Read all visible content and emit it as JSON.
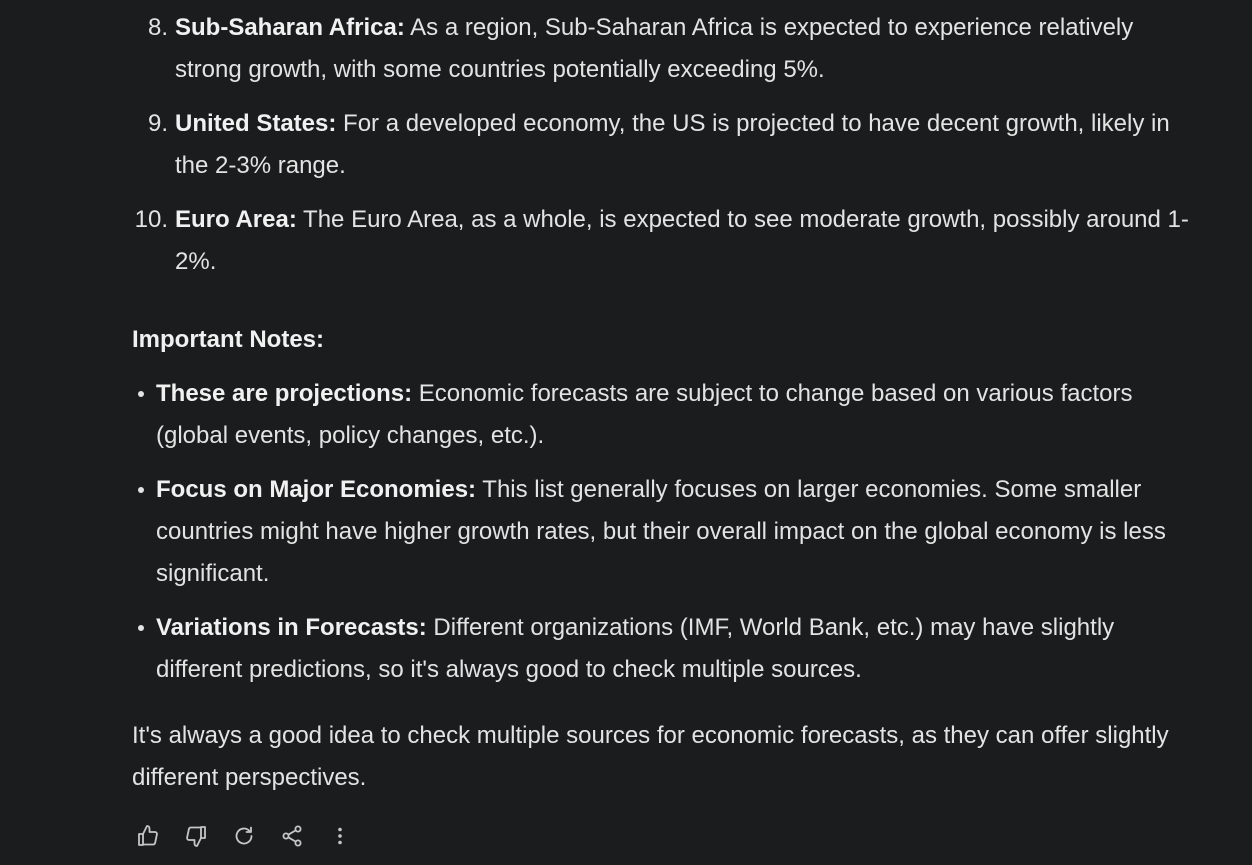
{
  "ranked_list": [
    {
      "number": "8.",
      "title": "Sub-Saharan Africa:",
      "text": " As a region, Sub-Saharan Africa is expected to experience relatively strong growth, with some countries potentially exceeding 5%."
    },
    {
      "number": "9.",
      "title": "United States:",
      "text": " For a developed economy, the US is projected to have decent growth, likely in the 2-3% range."
    },
    {
      "number": "10.",
      "title": "Euro Area:",
      "text": " The Euro Area, as a whole, is expected to see moderate growth, possibly around 1-2%."
    }
  ],
  "notes": {
    "heading": "Important Notes:",
    "items": [
      {
        "title": "These are projections:",
        "text": " Economic forecasts are subject to change based on various factors (global events, policy changes, etc.)."
      },
      {
        "title": "Focus on Major Economies:",
        "text": " This list generally focuses on larger economies. Some smaller countries might have higher growth rates, but their overall impact on the global economy is less significant."
      },
      {
        "title": "Variations in Forecasts:",
        "text": " Different organizations (IMF, World Bank, etc.) may have slightly different predictions, so it's always good to check multiple sources."
      }
    ]
  },
  "closing": "It's always a good idea to check multiple sources for economic forecasts, as they can offer slightly different perspectives.",
  "actions": [
    {
      "name": "thumbs-up-icon"
    },
    {
      "name": "thumbs-down-icon"
    },
    {
      "name": "regenerate-icon"
    },
    {
      "name": "share-icon"
    },
    {
      "name": "more-vertical-icon"
    }
  ]
}
